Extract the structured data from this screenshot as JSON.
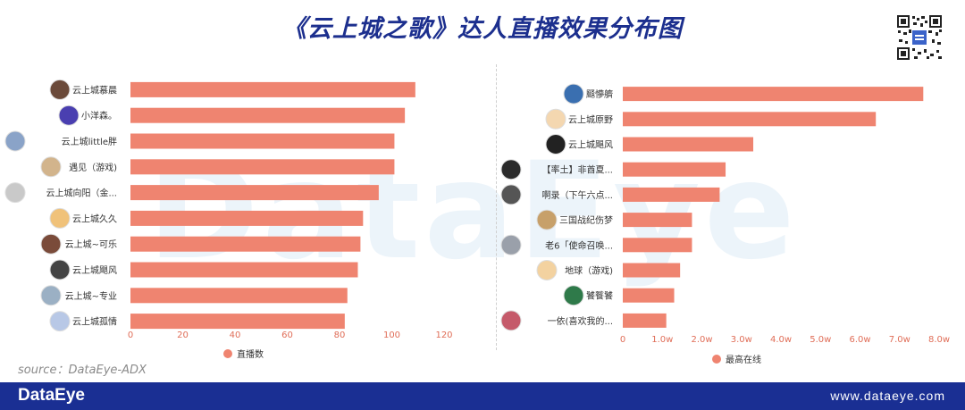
{
  "title": "《云上城之歌》达人直播效果分布图",
  "source": "source：DataEye-ADX",
  "footer": {
    "brand": "DataEye",
    "url": "www.dataeye.com"
  },
  "watermark": "DataEye",
  "colors": {
    "bar": "#ef8470",
    "title": "#1c2f8e",
    "footer": "#1a2f93",
    "tick": "#e06e58"
  },
  "chart_data": [
    {
      "type": "bar",
      "orientation": "horizontal",
      "categories": [
        "云上城慕晨",
        "小洋森。",
        "云上城little胖",
        "遇见（游戏)",
        "云上城向阳（金...",
        "云上城久久",
        "云上城~可乐",
        "云上城飓风",
        "云上城~专业",
        "云上城孤情"
      ],
      "values": [
        109,
        105,
        101,
        101,
        95,
        89,
        88,
        87,
        83,
        82
      ],
      "xlim": [
        0,
        120
      ],
      "xticks": [
        "0",
        "20",
        "40",
        "60",
        "80",
        "100",
        "120"
      ],
      "legend": "直播数",
      "legend_position": "bottom",
      "grid": false
    },
    {
      "type": "bar",
      "orientation": "horizontal",
      "categories": [
        "颾懜艩",
        "云上城原野",
        "云上城飓风",
        "【率土】非酋夏...",
        "啊录（下午六点...",
        "三国战纪伤梦",
        "老6「使命召唤...",
        "地球（游戏)",
        "饕餮饕",
        "一依(喜欢我的..."
      ],
      "values": [
        76000,
        64000,
        33000,
        26000,
        24500,
        17500,
        17500,
        14500,
        13000,
        11000
      ],
      "xlim": [
        0,
        80000
      ],
      "xticks": [
        "0",
        "1.0w",
        "2.0w",
        "3.0w",
        "4.0w",
        "5.0w",
        "6.0w",
        "7.0w",
        "8.0w"
      ],
      "legend": "最高在线",
      "legend_position": "bottom",
      "grid": false
    }
  ]
}
